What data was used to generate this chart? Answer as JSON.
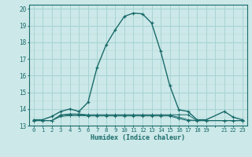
{
  "xlabel": "Humidex (Indice chaleur)",
  "bg_color": "#cce8e8",
  "grid_color_major": "#a8d4d4",
  "grid_color_minor": "#bcdede",
  "line_color": "#1a6b6b",
  "main_x": [
    0,
    1,
    2,
    3,
    4,
    5,
    6,
    7,
    8,
    9,
    10,
    11,
    12,
    13,
    14,
    15,
    16,
    17,
    18,
    19,
    21,
    22,
    23
  ],
  "main_y": [
    13.35,
    13.35,
    13.55,
    13.85,
    14.0,
    13.85,
    14.4,
    16.5,
    17.85,
    18.75,
    19.55,
    19.75,
    19.7,
    19.15,
    17.45,
    15.4,
    13.95,
    13.85,
    13.35,
    13.35,
    13.85,
    13.5,
    13.35
  ],
  "line2_x": [
    0,
    1,
    2,
    3,
    4,
    5,
    6,
    7,
    8,
    9,
    10,
    11,
    12,
    13,
    14,
    15,
    16,
    17,
    18,
    19,
    21,
    22,
    23
  ],
  "line2_y": [
    13.3,
    13.3,
    13.3,
    13.65,
    13.7,
    13.7,
    13.65,
    13.65,
    13.65,
    13.65,
    13.65,
    13.65,
    13.65,
    13.65,
    13.65,
    13.65,
    13.65,
    13.65,
    13.3,
    13.3,
    13.3,
    13.3,
    13.3
  ],
  "line3_x": [
    0,
    1,
    2,
    3,
    4,
    5,
    6,
    7,
    8,
    9,
    10,
    11,
    12,
    13,
    14,
    15,
    16,
    17,
    18,
    19,
    21,
    22,
    23
  ],
  "line3_y": [
    13.3,
    13.3,
    13.3,
    13.6,
    13.65,
    13.65,
    13.62,
    13.62,
    13.62,
    13.62,
    13.62,
    13.62,
    13.62,
    13.62,
    13.62,
    13.62,
    13.5,
    13.35,
    13.3,
    13.3,
    13.3,
    13.3,
    13.3
  ],
  "line4_x": [
    0,
    1,
    2,
    3,
    4,
    5,
    6,
    7,
    8,
    9,
    10,
    11,
    12,
    13,
    14,
    15,
    16,
    17,
    18,
    19,
    21,
    22,
    23
  ],
  "line4_y": [
    13.3,
    13.3,
    13.3,
    13.55,
    13.6,
    13.6,
    13.58,
    13.58,
    13.58,
    13.58,
    13.58,
    13.58,
    13.58,
    13.58,
    13.58,
    13.58,
    13.42,
    13.3,
    13.3,
    13.3,
    13.3,
    13.3,
    13.3
  ],
  "xlim": [
    -0.5,
    23.5
  ],
  "ylim": [
    13.0,
    20.25
  ],
  "yticks": [
    13,
    14,
    15,
    16,
    17,
    18,
    19,
    20
  ],
  "xtick_labels": [
    "0",
    "1",
    "2",
    "3",
    "4",
    "5",
    "6",
    "7",
    "8",
    "9",
    "10",
    "11",
    "12",
    "13",
    "14",
    "15",
    "16",
    "17",
    "18",
    "19",
    "",
    "21",
    "22",
    "23"
  ]
}
